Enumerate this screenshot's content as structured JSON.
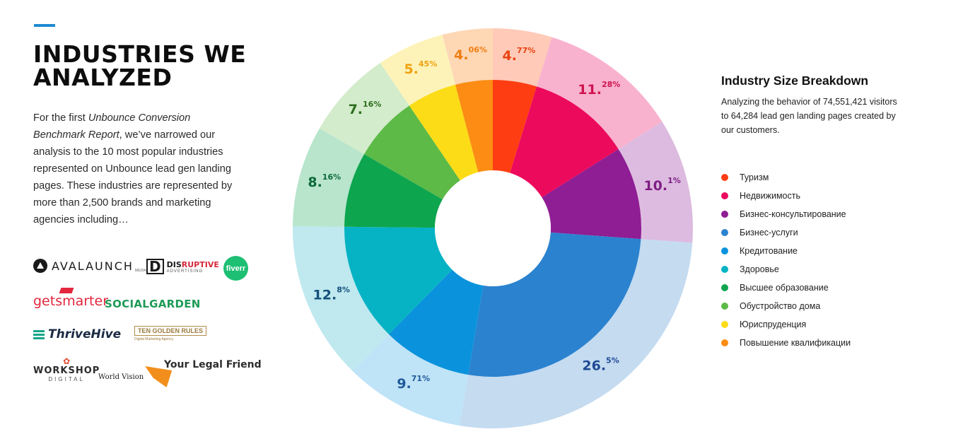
{
  "page": {
    "title": "INDUSTRIES WE ANALYZED",
    "intro": {
      "part1": "For the first ",
      "emphasis": "Unbounce Conversion Benchmark Report",
      "part2": ", we’ve narrowed our analysis to the 10 most popular industries represented on Unbounce lead gen landing pages. These industries are represented by more than 2,500 brands and marketing agencies including…"
    },
    "accent_color": "#1e8ad2"
  },
  "logos": {
    "avalaunch": {
      "text": "AVALAUNCH",
      "sub": "MEDIA"
    },
    "disruptive": {
      "mark": "D",
      "text_a": "DIS",
      "text_b": "RUPTIVE",
      "sub": "ADVERTISING"
    },
    "fiverr": {
      "text": "fiverr"
    },
    "getsmarter": {
      "text": "getsmarter"
    },
    "socialgarden": {
      "text": "SOCIALGARDEN"
    },
    "thrivehive": {
      "text": "ThriveHive"
    },
    "tengolden": {
      "text": "TEN GOLDEN RULES",
      "sub": "Digital Marketing Agency"
    },
    "workshop": {
      "text": "WORKSHOP",
      "sub": "DIGITAL"
    },
    "worldvision": {
      "text": "World Vision"
    },
    "yourlegalfriend": {
      "text": "Your Legal Friend"
    }
  },
  "legend": {
    "title": "Industry Size Breakdown",
    "subtitle": "Analyzing the behavior of 74,551,421 visitors to 64,284 lead gen landing pages created by our customers."
  },
  "chart_data": {
    "type": "pie",
    "style": "donut",
    "legend_position": "right",
    "series": [
      {
        "name": "Туризм",
        "value": 4.77,
        "label_int": "4.",
        "label_dec": "77%",
        "color": "#ff3d12",
        "outer_color": "#ffcab8",
        "label_color": "#e8420f"
      },
      {
        "name": "Недвижимость",
        "value": 11.28,
        "label_int": "11.",
        "label_dec": "28%",
        "color": "#ec0a5c",
        "outer_color": "#f9b2ce",
        "label_color": "#d0124f"
      },
      {
        "name": "Бизнес-консультирование",
        "value": 10.1,
        "label_int": "10.",
        "label_dec": "1%",
        "color": "#8f1d94",
        "outer_color": "#ddbbe0",
        "label_color": "#7e1e84"
      },
      {
        "name": "Бизнес-услуги",
        "value": 26.5,
        "label_int": "26.",
        "label_dec": "5%",
        "color": "#2b82cf",
        "outer_color": "#c4dbf0",
        "label_color": "#1f4a94"
      },
      {
        "name": "Кредитование",
        "value": 9.71,
        "label_int": "9.",
        "label_dec": "71%",
        "color": "#0a93dc",
        "outer_color": "#bfe3f7",
        "label_color": "#1f5a9a"
      },
      {
        "name": "Здоровье",
        "value": 12.8,
        "label_int": "12.",
        "label_dec": "8%",
        "color": "#06b3c4",
        "outer_color": "#bfe9ef",
        "label_color": "#14507a"
      },
      {
        "name": "Высшее образование",
        "value": 8.16,
        "label_int": "8.",
        "label_dec": "16%",
        "color": "#0ea54f",
        "outer_color": "#b8e5cc",
        "label_color": "#0d6a3a"
      },
      {
        "name": "Обустройство дома",
        "value": 7.16,
        "label_int": "7.",
        "label_dec": "16%",
        "color": "#5dba47",
        "outer_color": "#d3eccb",
        "label_color": "#2e6e1f"
      },
      {
        "name": "Юриспруденция",
        "value": 5.45,
        "label_int": "5.",
        "label_dec": "45%",
        "color": "#fcdc17",
        "outer_color": "#fdf3b8",
        "label_color": "#f0a010"
      },
      {
        "name": "Повышение квалификации",
        "value": 4.06,
        "label_int": "4.",
        "label_dec": "06%",
        "color": "#fc8c13",
        "outer_color": "#fed7b5",
        "label_color": "#ef7d12"
      }
    ]
  }
}
